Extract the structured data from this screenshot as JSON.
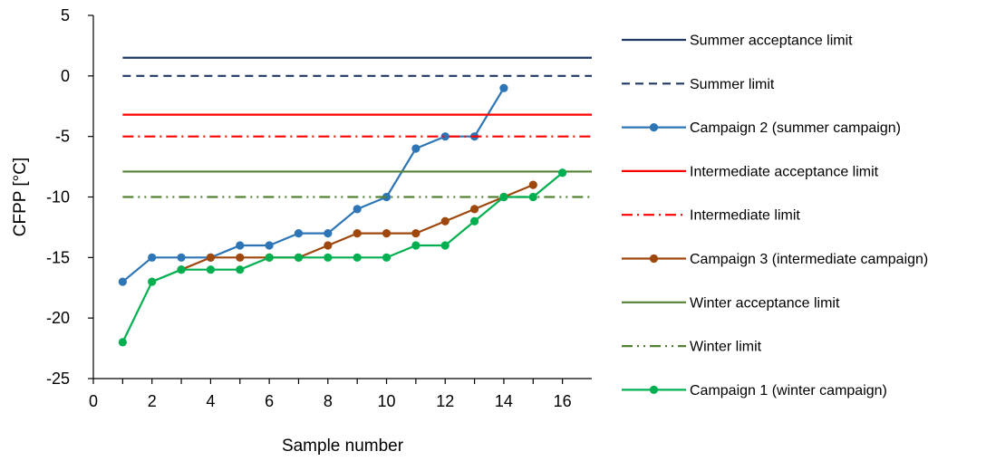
{
  "chart_data": {
    "type": "line",
    "title": "",
    "xlabel": "Sample number",
    "ylabel": "CFPP [°C]",
    "xlim": [
      0,
      17
    ],
    "ylim": [
      -25,
      5
    ],
    "xticks": [
      0,
      2,
      4,
      6,
      8,
      10,
      12,
      14,
      16
    ],
    "yticks": [
      5,
      0,
      -5,
      -10,
      -15,
      -20,
      -25
    ],
    "grid": false,
    "legend_position": "right",
    "series": [
      {
        "name": "Summer acceptance limit",
        "kind": "hline",
        "y": 1.5,
        "color": "#1f3864",
        "dash": "solid",
        "markers": false
      },
      {
        "name": "Summer limit",
        "kind": "hline",
        "y": 0,
        "color": "#1f3864",
        "dash": "dash",
        "markers": false
      },
      {
        "name": "Campaign 2 (summer campaign)",
        "kind": "line",
        "color": "#2e75b6",
        "markers": true,
        "x": [
          1,
          2,
          3,
          4,
          5,
          6,
          7,
          8,
          9,
          10,
          11,
          12,
          13,
          14
        ],
        "y": [
          -17,
          -15,
          -15,
          -15,
          -14,
          -14,
          -13,
          -13,
          -11,
          -10,
          -6,
          -5,
          -5,
          -1
        ]
      },
      {
        "name": "Intermediate acceptance limit",
        "kind": "hline",
        "y": -3.2,
        "color": "#ff0000",
        "dash": "solid",
        "markers": false
      },
      {
        "name": "Intermediate limit",
        "kind": "hline",
        "y": -5,
        "color": "#ff0000",
        "dash": "dashdot",
        "markers": false
      },
      {
        "name": "Campaign 3 (intermediate campaign)",
        "kind": "line",
        "color": "#9e480e",
        "markers": true,
        "x": [
          3,
          4,
          5,
          6,
          7,
          8,
          9,
          10,
          11,
          12,
          13,
          14,
          15
        ],
        "y": [
          -16,
          -15,
          -15,
          -15,
          -15,
          -14,
          -13,
          -13,
          -13,
          -12,
          -11,
          -10,
          -9
        ]
      },
      {
        "name": "Winter acceptance limit",
        "kind": "hline",
        "y": -7.9,
        "color": "#548235",
        "dash": "solid",
        "markers": false
      },
      {
        "name": "Winter limit",
        "kind": "hline",
        "y": -10,
        "color": "#548235",
        "dash": "dashdotdot",
        "markers": false
      },
      {
        "name": "Campaign 1 (winter campaign)",
        "kind": "line",
        "color": "#00b050",
        "markers": true,
        "x": [
          1,
          2,
          3,
          4,
          5,
          6,
          7,
          8,
          9,
          10,
          11,
          12,
          13,
          14,
          15,
          16
        ],
        "y": [
          -22,
          -17,
          -16,
          -16,
          -16,
          -15,
          -15,
          -15,
          -15,
          -15,
          -14,
          -14,
          -12,
          -10,
          -10,
          -8
        ]
      }
    ]
  }
}
